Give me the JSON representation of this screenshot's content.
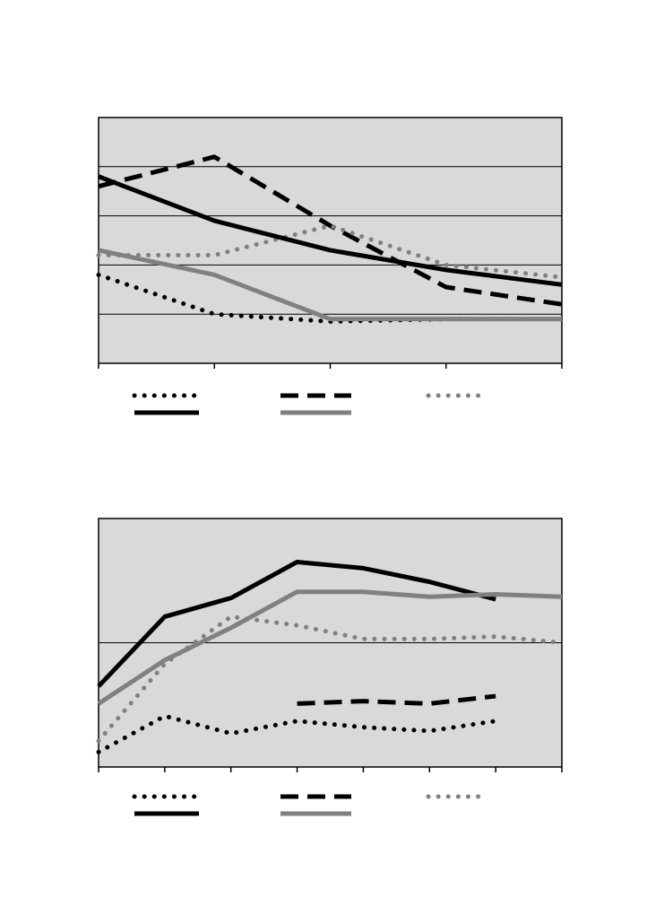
{
  "chart_data": [
    {
      "type": "line",
      "grid": true,
      "background": "#d9d9d9",
      "x": [
        0,
        1,
        2,
        3,
        4
      ],
      "xlim": [
        0,
        4
      ],
      "xticks": [
        0,
        1,
        2,
        3,
        4
      ],
      "ylim": [
        0,
        5
      ],
      "yticks": [
        1,
        2,
        3,
        4
      ],
      "series": [
        {
          "color": "#000000",
          "style": "dotted",
          "values": [
            1.8,
            1.0,
            0.85,
            0.9,
            0.9
          ]
        },
        {
          "color": "#000000",
          "style": "dashed",
          "values": [
            3.6,
            4.2,
            2.8,
            1.55,
            1.2
          ]
        },
        {
          "color": "#808080",
          "style": "dotted",
          "values": [
            2.2,
            2.2,
            2.8,
            2.0,
            1.75
          ]
        },
        {
          "color": "#000000",
          "style": "solid",
          "values": [
            3.8,
            2.9,
            2.3,
            1.9,
            1.6
          ]
        },
        {
          "color": "#808080",
          "style": "solid",
          "values": [
            2.3,
            1.8,
            0.9,
            0.9,
            0.9
          ]
        }
      ]
    },
    {
      "type": "line",
      "grid": true,
      "background": "#d9d9d9",
      "x": [
        0,
        1,
        2,
        3,
        4,
        5,
        6,
        7
      ],
      "xlim": [
        0,
        7
      ],
      "xticks": [
        0,
        1,
        2,
        3,
        4,
        5,
        6,
        7
      ],
      "ylim": [
        0,
        2
      ],
      "yticks": [
        1
      ],
      "series": [
        {
          "color": "#000000",
          "style": "dotted",
          "values": [
            0.12,
            0.41,
            0.27,
            0.37,
            0.32,
            0.29,
            0.37,
            null
          ]
        },
        {
          "color": "#000000",
          "style": "dashed",
          "values": [
            null,
            null,
            null,
            0.51,
            0.53,
            0.51,
            0.57,
            null
          ]
        },
        {
          "color": "#808080",
          "style": "dotted",
          "values": [
            0.21,
            0.83,
            1.21,
            1.14,
            1.03,
            1.03,
            1.05,
            1.0
          ]
        },
        {
          "color": "#000000",
          "style": "solid",
          "values": [
            0.65,
            1.21,
            1.36,
            1.65,
            1.6,
            1.49,
            1.35,
            null
          ]
        },
        {
          "color": "#808080",
          "style": "solid",
          "values": [
            0.51,
            0.86,
            1.12,
            1.41,
            1.41,
            1.37,
            1.39,
            1.37
          ]
        }
      ]
    }
  ]
}
